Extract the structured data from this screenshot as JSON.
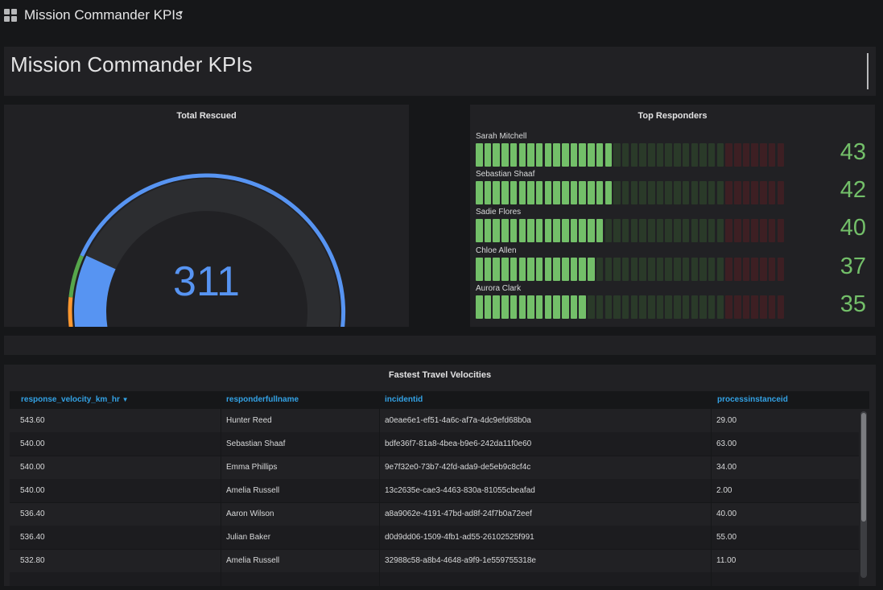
{
  "header": {
    "title": "Mission Commander KPIs",
    "icon": "grid-icon",
    "dropdown_icon": "caret-down-icon"
  },
  "text_panel": {
    "heading": "Mission Commander KPIs"
  },
  "gauge": {
    "title": "Total Rescued",
    "value": "311",
    "value_numeric": 311,
    "fraction": 0.66,
    "colors": {
      "value": "#5794f2",
      "track": "#2c2d30",
      "threshold_red": "#e02f44",
      "threshold_orange": "#ff9830",
      "threshold_green": "#56a64b",
      "threshold_blue": "#5794f2"
    }
  },
  "top_responders": {
    "title": "Top Responders",
    "max_cells": 36,
    "green_end": 29,
    "colors": {
      "green_on": "#73bf69",
      "green_off": "#2a3a29",
      "red_off": "#3d1f23",
      "value": "#73bf69"
    },
    "items": [
      {
        "name": "Sarah Mitchell",
        "value": "43",
        "lit": 16
      },
      {
        "name": "Sebastian Shaaf",
        "value": "42",
        "lit": 16
      },
      {
        "name": "Sadie Flores",
        "value": "40",
        "lit": 15
      },
      {
        "name": "Chloe Allen",
        "value": "37",
        "lit": 14
      },
      {
        "name": "Aurora Clark",
        "value": "35",
        "lit": 13
      }
    ]
  },
  "table": {
    "title": "Fastest Travel Velocities",
    "columns": [
      "response_velocity_km_hr",
      "responderfullname",
      "incidentid",
      "processinstanceid"
    ],
    "sort_icon": "sort-desc-icon",
    "rows": [
      [
        "543.60",
        "Hunter Reed",
        "a0eae6e1-ef51-4a6c-af7a-4dc9efd68b0a",
        "29.00"
      ],
      [
        "540.00",
        "Sebastian Shaaf",
        "bdfe36f7-81a8-4bea-b9e6-242da11f0e60",
        "63.00"
      ],
      [
        "540.00",
        "Emma Phillips",
        "9e7f32e0-73b7-42fd-ada9-de5eb9c8cf4c",
        "34.00"
      ],
      [
        "540.00",
        "Amelia Russell",
        "13c2635e-cae3-4463-830a-81055cbeafad",
        "2.00"
      ],
      [
        "536.40",
        "Aaron Wilson",
        "a8a9062e-4191-47bd-ad8f-24f7b0a72eef",
        "40.00"
      ],
      [
        "536.40",
        "Julian Baker",
        "d0d9dd06-1509-4fb1-ad55-26102525f991",
        "55.00"
      ],
      [
        "532.80",
        "Amelia Russell",
        "32988c58-a8b4-4648-a9f9-1e559755318e",
        "11.00"
      ],
      [
        "",
        "",
        "",
        ""
      ]
    ]
  }
}
